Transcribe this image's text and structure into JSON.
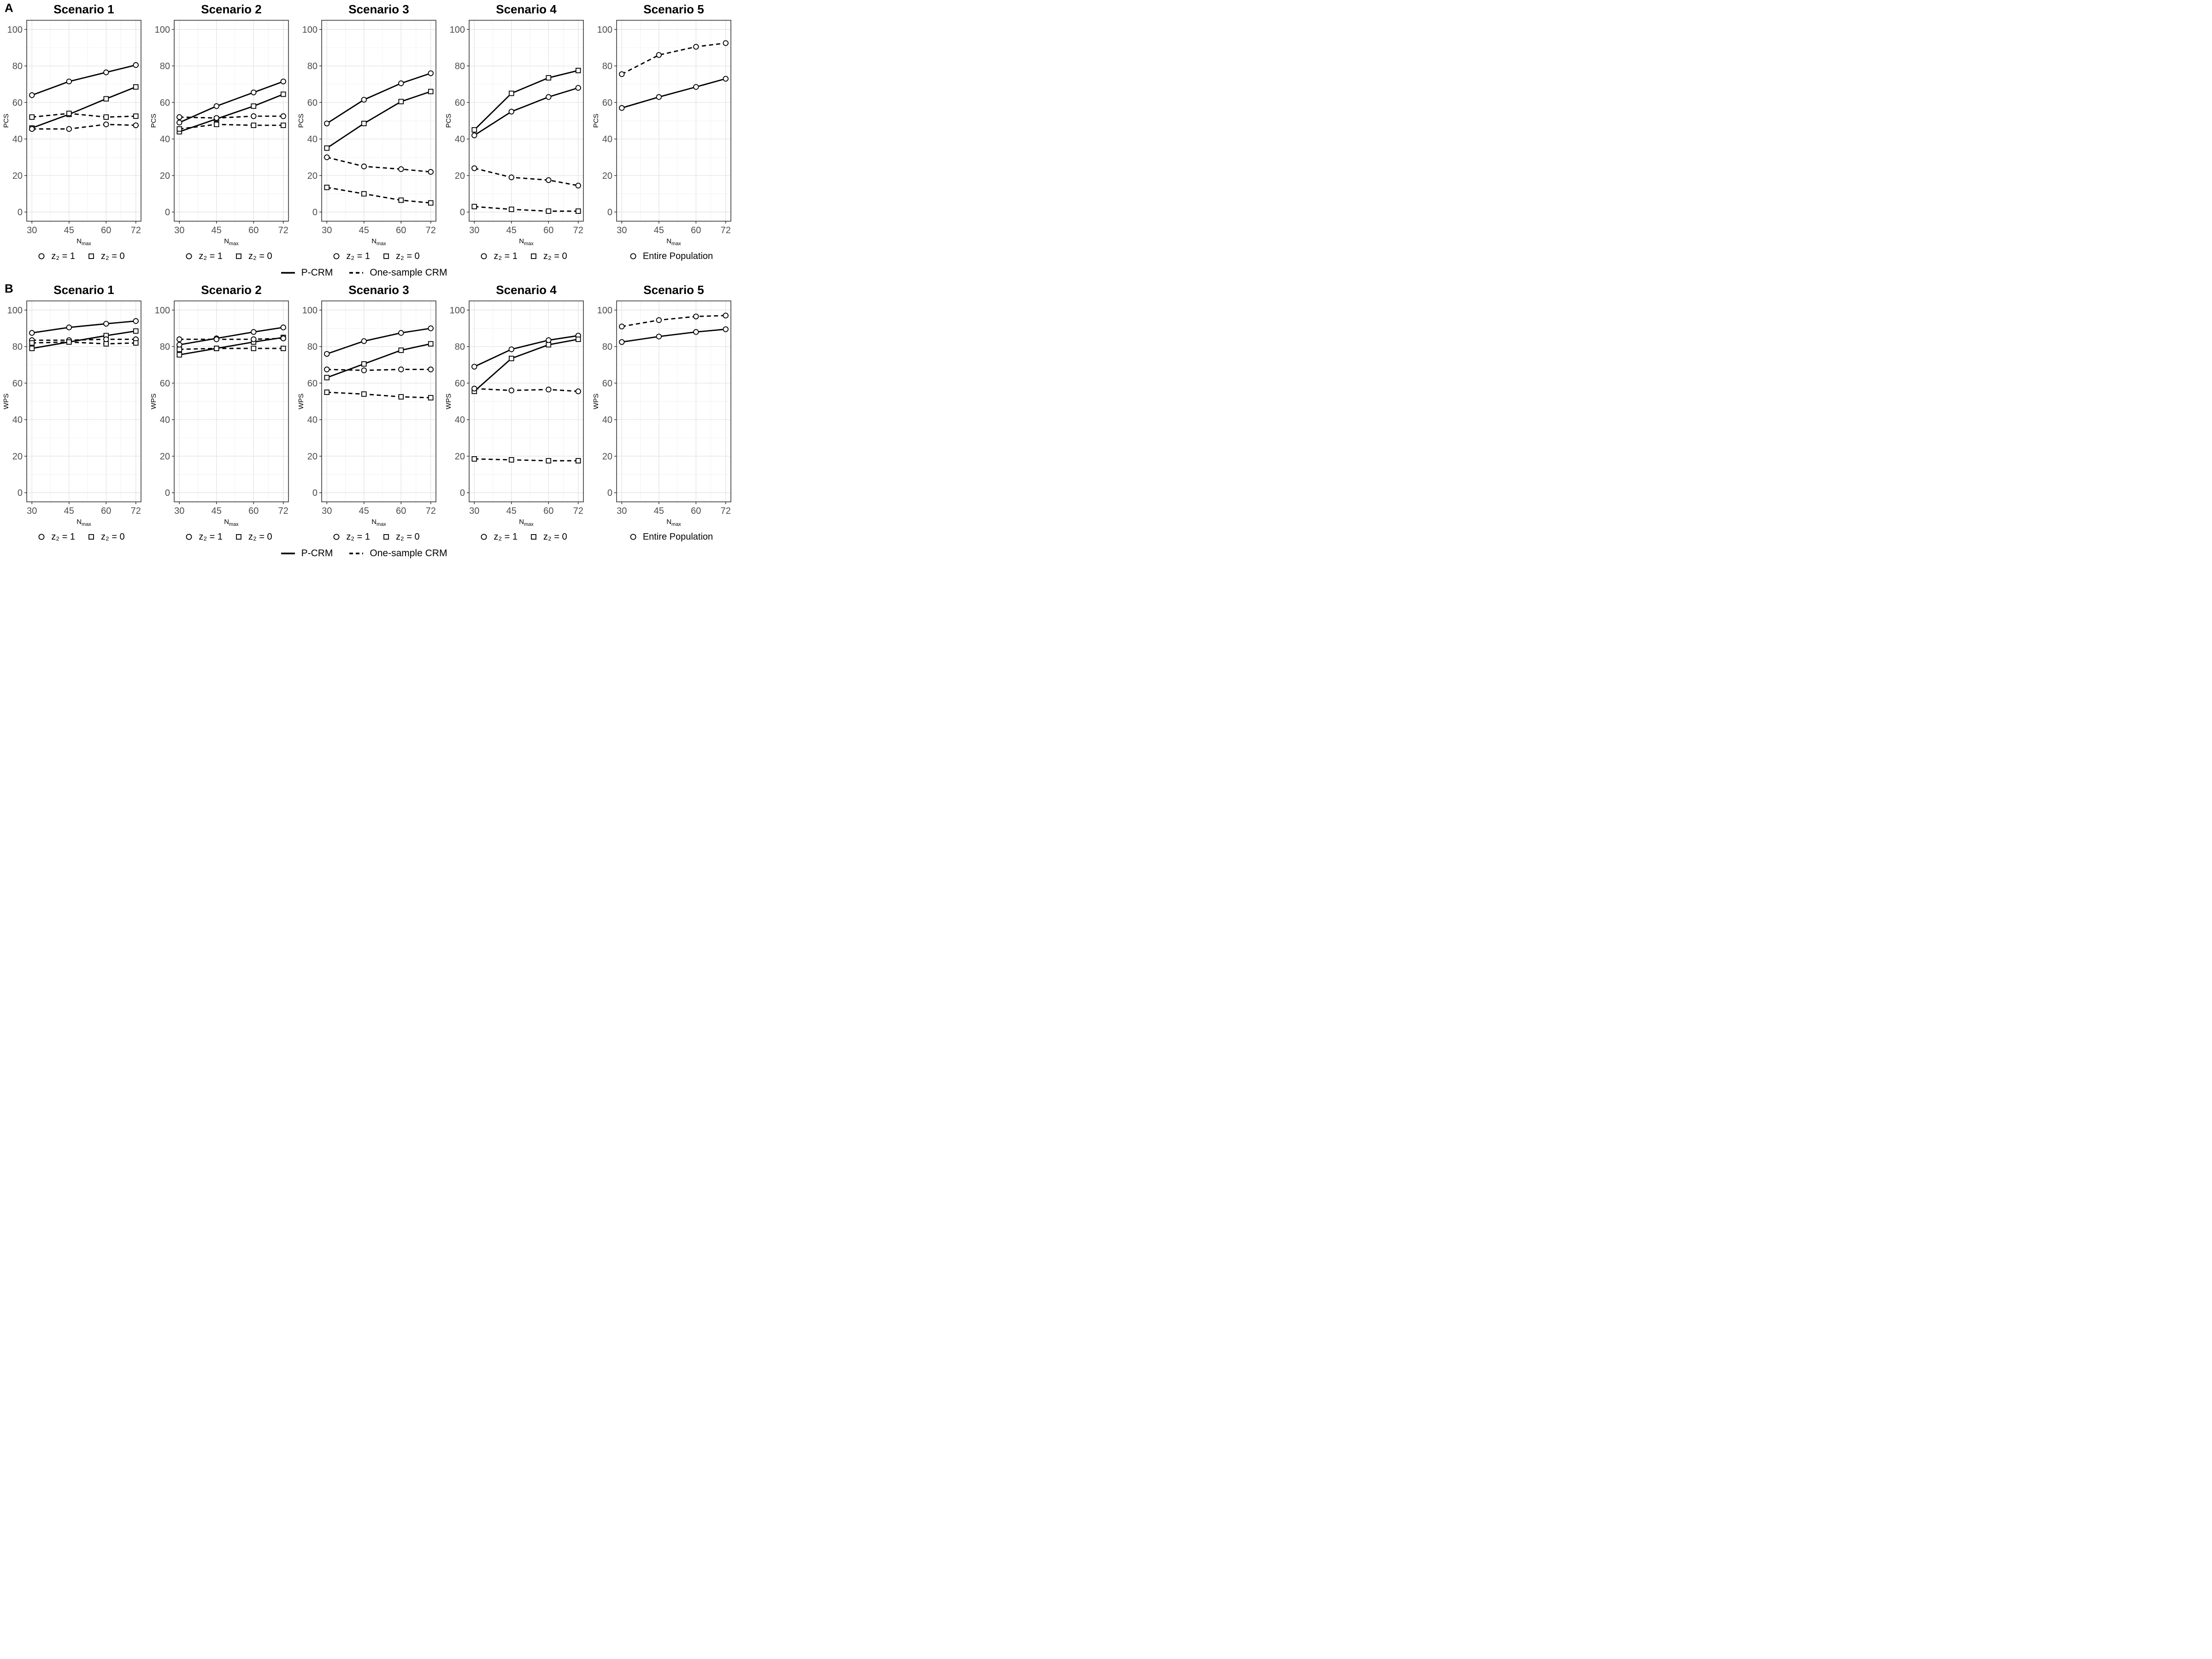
{
  "figure": {
    "rows": [
      {
        "letter": "A",
        "ylabel": "PCS"
      },
      {
        "letter": "B",
        "ylabel": "WPS"
      }
    ],
    "legend_linetype": {
      "solid": "P-CRM",
      "dashed": "One-sample CRM"
    },
    "xlabel": {
      "main": "N",
      "sub": "max"
    },
    "colors": {
      "series": "#000000",
      "tick_label": "#4d4d4d",
      "grid_major": "#e3e3e3",
      "grid_minor": "#f1f1f1",
      "panel_border": "#2b2b2b",
      "background": "#ffffff"
    }
  },
  "chart_data": [
    {
      "row": "A",
      "type": "line",
      "title": "Scenario 1",
      "ylabel": "PCS",
      "x": [
        30,
        45,
        60,
        72
      ],
      "xticks": [
        30,
        45,
        60,
        72
      ],
      "yticks": [
        0,
        20,
        40,
        60,
        80,
        100
      ],
      "ylim": [
        0,
        100
      ],
      "grid": true,
      "series": [
        {
          "name": "P-CRM, z₂ = 1",
          "line": "solid",
          "marker": "circle",
          "values": [
            64,
            71.5,
            76.5,
            80.5
          ]
        },
        {
          "name": "P-CRM, z₂ = 0",
          "line": "solid",
          "marker": "square",
          "values": [
            46,
            53.5,
            62,
            68.5
          ]
        },
        {
          "name": "One-sample CRM, z₂ = 1",
          "line": "dashed",
          "marker": "circle",
          "values": [
            45.5,
            45.5,
            48,
            47.5
          ]
        },
        {
          "name": "One-sample CRM, z₂ = 0",
          "line": "dashed",
          "marker": "square",
          "values": [
            52,
            54,
            52,
            52.5
          ]
        }
      ],
      "legend": [
        {
          "marker": "circle",
          "label": "z₂ = 1"
        },
        {
          "marker": "square",
          "label": "z₂ = 0"
        }
      ]
    },
    {
      "row": "A",
      "type": "line",
      "title": "Scenario 2",
      "ylabel": "PCS",
      "x": [
        30,
        45,
        60,
        72
      ],
      "xticks": [
        30,
        45,
        60,
        72
      ],
      "yticks": [
        0,
        20,
        40,
        60,
        80,
        100
      ],
      "ylim": [
        0,
        100
      ],
      "grid": true,
      "series": [
        {
          "name": "P-CRM, z₂ = 1",
          "line": "solid",
          "marker": "circle",
          "values": [
            49,
            58,
            65.5,
            71.5
          ]
        },
        {
          "name": "P-CRM, z₂ = 0",
          "line": "solid",
          "marker": "square",
          "values": [
            44,
            51,
            58,
            64.5
          ]
        },
        {
          "name": "One-sample CRM, z₂ = 1",
          "line": "dashed",
          "marker": "circle",
          "values": [
            52,
            51.5,
            52.5,
            52.5
          ]
        },
        {
          "name": "One-sample CRM, z₂ = 0",
          "line": "dashed",
          "marker": "square",
          "values": [
            45.5,
            48,
            47.5,
            47.5
          ]
        }
      ],
      "legend": [
        {
          "marker": "circle",
          "label": "z₂ = 1"
        },
        {
          "marker": "square",
          "label": "z₂ = 0"
        }
      ]
    },
    {
      "row": "A",
      "type": "line",
      "title": "Scenario 3",
      "ylabel": "PCS",
      "x": [
        30,
        45,
        60,
        72
      ],
      "xticks": [
        30,
        45,
        60,
        72
      ],
      "yticks": [
        0,
        20,
        40,
        60,
        80,
        100
      ],
      "ylim": [
        0,
        100
      ],
      "grid": true,
      "series": [
        {
          "name": "P-CRM, z₂ = 1",
          "line": "solid",
          "marker": "circle",
          "values": [
            48.5,
            61.5,
            70.5,
            76
          ]
        },
        {
          "name": "P-CRM, z₂ = 0",
          "line": "solid",
          "marker": "square",
          "values": [
            35,
            48.5,
            60.5,
            66
          ]
        },
        {
          "name": "One-sample CRM, z₂ = 1",
          "line": "dashed",
          "marker": "circle",
          "values": [
            30,
            25,
            23.5,
            22
          ]
        },
        {
          "name": "One-sample CRM, z₂ = 0",
          "line": "dashed",
          "marker": "square",
          "values": [
            13.5,
            10,
            6.5,
            5
          ]
        }
      ],
      "legend": [
        {
          "marker": "circle",
          "label": "z₂ = 1"
        },
        {
          "marker": "square",
          "label": "z₂ = 0"
        }
      ]
    },
    {
      "row": "A",
      "type": "line",
      "title": "Scenario 4",
      "ylabel": "PCS",
      "x": [
        30,
        45,
        60,
        72
      ],
      "xticks": [
        30,
        45,
        60,
        72
      ],
      "yticks": [
        0,
        20,
        40,
        60,
        80,
        100
      ],
      "ylim": [
        0,
        100
      ],
      "grid": true,
      "series": [
        {
          "name": "P-CRM, z₂ = 1",
          "line": "solid",
          "marker": "circle",
          "values": [
            42,
            55,
            63,
            68
          ]
        },
        {
          "name": "P-CRM, z₂ = 0",
          "line": "solid",
          "marker": "square",
          "values": [
            45,
            65,
            73.5,
            77.5
          ]
        },
        {
          "name": "One-sample CRM, z₂ = 1",
          "line": "dashed",
          "marker": "circle",
          "values": [
            24,
            19,
            17.5,
            14.5
          ]
        },
        {
          "name": "One-sample CRM, z₂ = 0",
          "line": "dashed",
          "marker": "square",
          "values": [
            3,
            1.5,
            0.5,
            0.5
          ]
        }
      ],
      "legend": [
        {
          "marker": "circle",
          "label": "z₂ = 1"
        },
        {
          "marker": "square",
          "label": "z₂ = 0"
        }
      ]
    },
    {
      "row": "A",
      "type": "line",
      "title": "Scenario 5",
      "ylabel": "PCS",
      "x": [
        30,
        45,
        60,
        72
      ],
      "xticks": [
        30,
        45,
        60,
        72
      ],
      "yticks": [
        0,
        20,
        40,
        60,
        80,
        100
      ],
      "ylim": [
        0,
        100
      ],
      "grid": true,
      "series": [
        {
          "name": "P-CRM (Entire Population)",
          "line": "solid",
          "marker": "circle",
          "values": [
            57,
            63,
            68.5,
            73
          ]
        },
        {
          "name": "One-sample CRM (Entire Population)",
          "line": "dashed",
          "marker": "circle",
          "values": [
            75.5,
            86,
            90.5,
            92.5
          ]
        }
      ],
      "legend": [
        {
          "marker": "circle",
          "label": "Entire Population"
        }
      ]
    },
    {
      "row": "B",
      "type": "line",
      "title": "Scenario 1",
      "ylabel": "WPS",
      "x": [
        30,
        45,
        60,
        72
      ],
      "xticks": [
        30,
        45,
        60,
        72
      ],
      "yticks": [
        0,
        20,
        40,
        60,
        80,
        100
      ],
      "ylim": [
        0,
        100
      ],
      "grid": true,
      "series": [
        {
          "name": "P-CRM, z₂ = 1",
          "line": "solid",
          "marker": "circle",
          "values": [
            87.5,
            90.5,
            92.5,
            94
          ]
        },
        {
          "name": "P-CRM, z₂ = 0",
          "line": "solid",
          "marker": "square",
          "values": [
            79,
            82.5,
            86,
            88.5
          ]
        },
        {
          "name": "One-sample CRM, z₂ = 1",
          "line": "dashed",
          "marker": "circle",
          "values": [
            83.5,
            83.5,
            84,
            84
          ]
        },
        {
          "name": "One-sample CRM, z₂ = 0",
          "line": "dashed",
          "marker": "square",
          "values": [
            82,
            82.5,
            81.5,
            82
          ]
        }
      ],
      "legend": [
        {
          "marker": "circle",
          "label": "z₂ = 1"
        },
        {
          "marker": "square",
          "label": "z₂ = 0"
        }
      ]
    },
    {
      "row": "B",
      "type": "line",
      "title": "Scenario 2",
      "ylabel": "WPS",
      "x": [
        30,
        45,
        60,
        72
      ],
      "xticks": [
        30,
        45,
        60,
        72
      ],
      "yticks": [
        0,
        20,
        40,
        60,
        80,
        100
      ],
      "ylim": [
        0,
        100
      ],
      "grid": true,
      "series": [
        {
          "name": "P-CRM, z₂ = 1",
          "line": "solid",
          "marker": "circle",
          "values": [
            81,
            84.5,
            88,
            90.5
          ]
        },
        {
          "name": "P-CRM, z₂ = 0",
          "line": "solid",
          "marker": "square",
          "values": [
            75.5,
            79,
            82.5,
            85
          ]
        },
        {
          "name": "One-sample CRM, z₂ = 1",
          "line": "dashed",
          "marker": "circle",
          "values": [
            84,
            84,
            84,
            84.5
          ]
        },
        {
          "name": "One-sample CRM, z₂ = 0",
          "line": "dashed",
          "marker": "square",
          "values": [
            78.5,
            79,
            79,
            79
          ]
        }
      ],
      "legend": [
        {
          "marker": "circle",
          "label": "z₂ = 1"
        },
        {
          "marker": "square",
          "label": "z₂ = 0"
        }
      ]
    },
    {
      "row": "B",
      "type": "line",
      "title": "Scenario 3",
      "ylabel": "WPS",
      "x": [
        30,
        45,
        60,
        72
      ],
      "xticks": [
        30,
        45,
        60,
        72
      ],
      "yticks": [
        0,
        20,
        40,
        60,
        80,
        100
      ],
      "ylim": [
        0,
        100
      ],
      "grid": true,
      "series": [
        {
          "name": "P-CRM, z₂ = 1",
          "line": "solid",
          "marker": "circle",
          "values": [
            76,
            83,
            87.5,
            90
          ]
        },
        {
          "name": "P-CRM, z₂ = 0",
          "line": "solid",
          "marker": "square",
          "values": [
            63,
            70.5,
            78,
            81.5
          ]
        },
        {
          "name": "One-sample CRM, z₂ = 1",
          "line": "dashed",
          "marker": "circle",
          "values": [
            67.5,
            67,
            67.5,
            67.5
          ]
        },
        {
          "name": "One-sample CRM, z₂ = 0",
          "line": "dashed",
          "marker": "square",
          "values": [
            55,
            54,
            52.5,
            52
          ]
        }
      ],
      "legend": [
        {
          "marker": "circle",
          "label": "z₂ = 1"
        },
        {
          "marker": "square",
          "label": "z₂ = 0"
        }
      ]
    },
    {
      "row": "B",
      "type": "line",
      "title": "Scenario 4",
      "ylabel": "WPS",
      "x": [
        30,
        45,
        60,
        72
      ],
      "xticks": [
        30,
        45,
        60,
        72
      ],
      "yticks": [
        0,
        20,
        40,
        60,
        80,
        100
      ],
      "ylim": [
        0,
        100
      ],
      "grid": true,
      "series": [
        {
          "name": "P-CRM, z₂ = 1",
          "line": "solid",
          "marker": "circle",
          "values": [
            69,
            78.5,
            83.5,
            86
          ]
        },
        {
          "name": "P-CRM, z₂ = 0",
          "line": "solid",
          "marker": "square",
          "values": [
            55.5,
            73.5,
            81,
            84
          ]
        },
        {
          "name": "One-sample CRM, z₂ = 1",
          "line": "dashed",
          "marker": "circle",
          "values": [
            57,
            56,
            56.5,
            55.5
          ]
        },
        {
          "name": "One-sample CRM, z₂ = 0",
          "line": "dashed",
          "marker": "square",
          "values": [
            18.5,
            18,
            17.5,
            17.5
          ]
        }
      ],
      "legend": [
        {
          "marker": "circle",
          "label": "z₂ = 1"
        },
        {
          "marker": "square",
          "label": "z₂ = 0"
        }
      ]
    },
    {
      "row": "B",
      "type": "line",
      "title": "Scenario 5",
      "ylabel": "WPS",
      "x": [
        30,
        45,
        60,
        72
      ],
      "xticks": [
        30,
        45,
        60,
        72
      ],
      "yticks": [
        0,
        20,
        40,
        60,
        80,
        100
      ],
      "ylim": [
        0,
        100
      ],
      "grid": true,
      "series": [
        {
          "name": "P-CRM (Entire Population)",
          "line": "solid",
          "marker": "circle",
          "values": [
            82.5,
            85.5,
            88,
            89.5
          ]
        },
        {
          "name": "One-sample CRM (Entire Population)",
          "line": "dashed",
          "marker": "circle",
          "values": [
            91,
            94.5,
            96.5,
            97
          ]
        }
      ],
      "legend": [
        {
          "marker": "circle",
          "label": "Entire Population"
        }
      ]
    }
  ]
}
